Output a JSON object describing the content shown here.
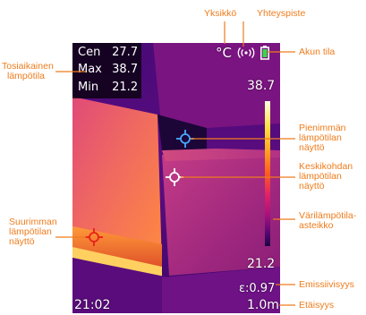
{
  "readout": {
    "center": {
      "label": "Cen",
      "value": "27.7"
    },
    "max": {
      "label": "Max",
      "value": "38.7"
    },
    "min": {
      "label": "Min",
      "value": "21.2"
    }
  },
  "status": {
    "unit": "°C",
    "connectivity_icon": "wireless-signal-icon",
    "battery_icon": "battery-icon"
  },
  "scale": {
    "top_value": "38.7",
    "bottom_value": "21.2",
    "gradient_colors": [
      "#fffde0",
      "#ffe040",
      "#ffa020",
      "#ff5a20",
      "#e0206a",
      "#a0107e",
      "#50086e",
      "#1a0440"
    ]
  },
  "footer": {
    "time": "21:02",
    "emissivity": "ε:0.97",
    "distance": "1.0m"
  },
  "callouts": {
    "unit": "Yksikkö",
    "connection": "Yhteyspiste",
    "battery": "Akun tila",
    "realtime_temp": [
      "Tosiaikainen",
      "lämpötila"
    ],
    "min_temp_display": [
      "Pienimmän",
      "lämpötilan",
      "näyttö"
    ],
    "center_temp_display": [
      "Keskikohdan",
      "lämpötilan",
      "näyttö"
    ],
    "color_scale": [
      "Värilämpötila-",
      "asteikko"
    ],
    "max_temp_display": [
      "Suurimman",
      "lämpötilan",
      "näyttö"
    ],
    "emissivity": "Emissiivisyys",
    "distance": "Etäisyys"
  }
}
